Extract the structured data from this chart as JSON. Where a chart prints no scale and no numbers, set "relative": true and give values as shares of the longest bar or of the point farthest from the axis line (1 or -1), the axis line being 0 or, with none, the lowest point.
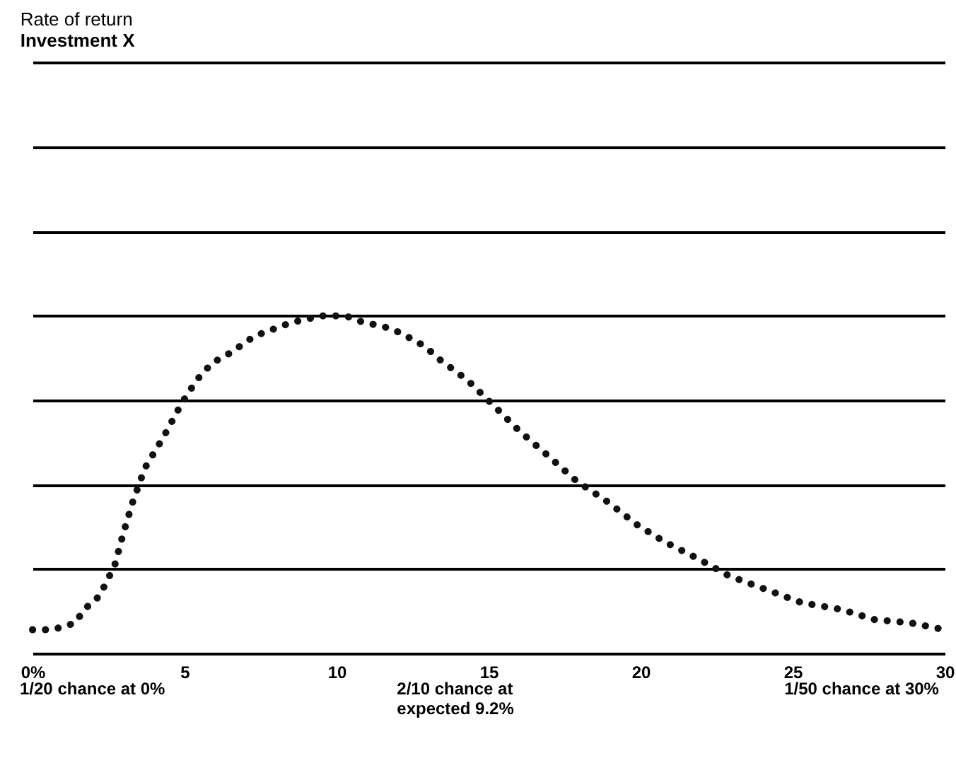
{
  "chart_data": {
    "type": "line",
    "title": "Rate of return",
    "subtitle": "Investment X",
    "x": [
      0,
      0.65,
      1.4,
      1.7,
      2.2,
      2.7,
      3.0,
      3.3,
      3.7,
      4.3,
      4.9,
      5.4,
      5.9,
      6.5,
      7.3,
      7.9,
      8.5,
      9.5,
      10.3,
      10.9,
      11.5,
      12.1,
      12.9,
      13.4,
      14.3,
      15.1,
      16.0,
      16.9,
      17.9,
      18.9,
      19.9,
      20.8,
      21.9,
      22.9,
      24.1,
      25.3,
      26.6,
      27.7,
      28.9,
      30
    ],
    "series": [
      {
        "color": "#111111",
        "values": [
          0.07,
          0.07,
          0.09,
          0.13,
          0.17,
          0.26,
          0.36,
          0.45,
          0.55,
          0.64,
          0.74,
          0.81,
          0.86,
          0.89,
          0.94,
          0.96,
          0.98,
          1.0,
          1.0,
          0.98,
          0.97,
          0.95,
          0.91,
          0.87,
          0.81,
          0.74,
          0.66,
          0.59,
          0.51,
          0.45,
          0.38,
          0.33,
          0.28,
          0.23,
          0.19,
          0.15,
          0.13,
          0.1,
          0.09,
          0.07
        ]
      }
    ],
    "relative": true,
    "line_style": "dotted",
    "grid": "y",
    "xlim": [
      0,
      30
    ],
    "xticks": [
      {
        "value": 0,
        "label": "0%"
      },
      5,
      10,
      15,
      20,
      25,
      30
    ],
    "annotations": [
      "1/20 chance at 0%",
      "2/10 chance at expected 9.2%",
      "1/50 chance at 30%"
    ]
  }
}
